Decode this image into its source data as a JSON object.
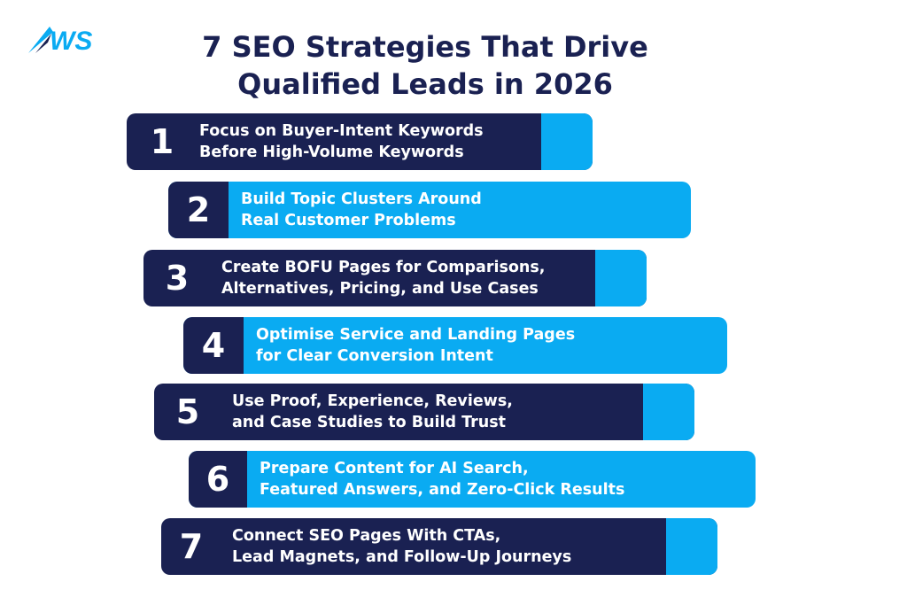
{
  "brand": {
    "logo_text": "WS",
    "colors": {
      "navy": "#1a2152",
      "sky": "#0aabf2"
    }
  },
  "title": {
    "line1": "7 SEO Strategies That Drive",
    "line2": "Qualified Leads in 2026"
  },
  "strategies": [
    {
      "number": "1",
      "line1": "Focus on Buyer-Intent Keywords",
      "line2": "Before High-Volume Keywords",
      "style": "dark"
    },
    {
      "number": "2",
      "line1": "Build Topic Clusters Around",
      "line2": "Real Customer Problems",
      "style": "light"
    },
    {
      "number": "3",
      "line1": "Create BOFU Pages for Comparisons,",
      "line2": "Alternatives, Pricing, and Use Cases",
      "style": "dark"
    },
    {
      "number": "4",
      "line1": "Optimise Service and Landing Pages",
      "line2": "for Clear Conversion Intent",
      "style": "light"
    },
    {
      "number": "5",
      "line1": "Use Proof, Experience, Reviews,",
      "line2": "and Case Studies to Build Trust",
      "style": "dark"
    },
    {
      "number": "6",
      "line1": "Prepare Content for AI Search,",
      "line2": "Featured Answers, and Zero-Click Results",
      "style": "light"
    },
    {
      "number": "7",
      "line1": "Connect SEO Pages With CTAs,",
      "line2": "Lead Magnets, and Follow-Up Journeys",
      "style": "dark"
    }
  ]
}
